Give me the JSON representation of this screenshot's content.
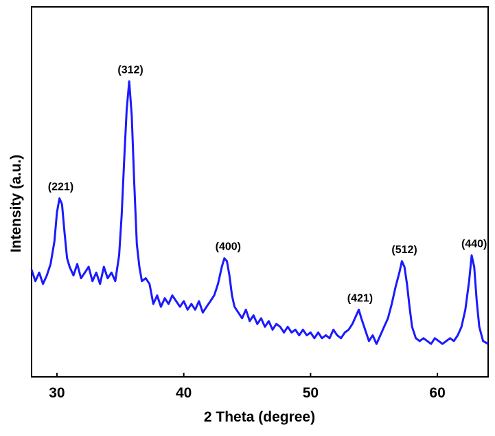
{
  "chart_data": {
    "type": "line",
    "title": "",
    "xlabel": "2 Theta (degree)",
    "ylabel": "Intensity (a.u.)",
    "xlim": [
      28,
      64
    ],
    "ylim": [
      0,
      100
    ],
    "x_ticks": [
      30,
      40,
      50,
      60
    ],
    "y_ticks_shown": false,
    "grid": false,
    "legend": "none",
    "line_color": "#1a1aff",
    "series": [
      {
        "x": [
          28.0,
          28.3,
          28.6,
          28.9,
          29.2,
          29.5,
          29.8,
          30.0,
          30.2,
          30.4,
          30.6,
          30.8,
          31.0,
          31.3,
          31.6,
          31.9,
          32.2,
          32.5,
          32.8,
          33.1,
          33.4,
          33.7,
          34.0,
          34.3,
          34.6,
          34.9,
          35.1,
          35.3,
          35.5,
          35.7,
          35.9,
          36.1,
          36.3,
          36.5,
          36.7,
          37.0,
          37.3,
          37.6,
          37.9,
          38.2,
          38.5,
          38.8,
          39.1,
          39.4,
          39.7,
          40.0,
          40.3,
          40.6,
          40.9,
          41.2,
          41.5,
          41.8,
          42.1,
          42.4,
          42.7,
          43.0,
          43.2,
          43.4,
          43.6,
          43.8,
          44.0,
          44.3,
          44.6,
          44.9,
          45.2,
          45.5,
          45.8,
          46.1,
          46.4,
          46.7,
          47.0,
          47.3,
          47.6,
          47.9,
          48.2,
          48.5,
          48.8,
          49.1,
          49.4,
          49.7,
          50.0,
          50.3,
          50.6,
          50.9,
          51.2,
          51.5,
          51.8,
          52.1,
          52.4,
          52.7,
          53.0,
          53.3,
          53.6,
          53.8,
          54.0,
          54.3,
          54.6,
          54.9,
          55.2,
          55.5,
          55.8,
          56.1,
          56.4,
          56.7,
          57.0,
          57.2,
          57.4,
          57.6,
          57.8,
          58.0,
          58.3,
          58.6,
          58.9,
          59.2,
          59.5,
          59.8,
          60.1,
          60.4,
          60.7,
          61.0,
          61.3,
          61.6,
          61.9,
          62.2,
          62.5,
          62.7,
          62.9,
          63.1,
          63.3,
          63.6,
          64.0
        ],
        "y": [
          32,
          28,
          31,
          27,
          30,
          34,
          42,
          52,
          57,
          55,
          45,
          36,
          33,
          30,
          34,
          29,
          31,
          33,
          28,
          31,
          27,
          33,
          29,
          31,
          28,
          37,
          51,
          70,
          88,
          98,
          86,
          62,
          41,
          33,
          28,
          29,
          27,
          20,
          23,
          19,
          22,
          20,
          23,
          21,
          19,
          21,
          18,
          20,
          18,
          21,
          17,
          19,
          21,
          23,
          27,
          33,
          36,
          35,
          30,
          23,
          19,
          17,
          15,
          18,
          14,
          16,
          13,
          15,
          12,
          14,
          11,
          13,
          12,
          10,
          12,
          10,
          11,
          9,
          11,
          9,
          10,
          8,
          10,
          8,
          9,
          8,
          11,
          9,
          8,
          10,
          11,
          13,
          16,
          18,
          15,
          11,
          7,
          9,
          6,
          9,
          12,
          15,
          20,
          26,
          31,
          35,
          33,
          27,
          19,
          12,
          8,
          7,
          8,
          7,
          6,
          8,
          7,
          6,
          7,
          8,
          7,
          9,
          12,
          18,
          28,
          37,
          33,
          21,
          12,
          7,
          6
        ]
      }
    ],
    "annotations": [
      {
        "text": "(221)",
        "x": 30.3,
        "y": 57
      },
      {
        "text": "(312)",
        "x": 35.8,
        "y": 98
      },
      {
        "text": "(400)",
        "x": 43.5,
        "y": 36
      },
      {
        "text": "(421)",
        "x": 53.9,
        "y": 18
      },
      {
        "text": "(512)",
        "x": 57.4,
        "y": 35
      },
      {
        "text": "(440)",
        "x": 62.9,
        "y": 37
      }
    ]
  }
}
